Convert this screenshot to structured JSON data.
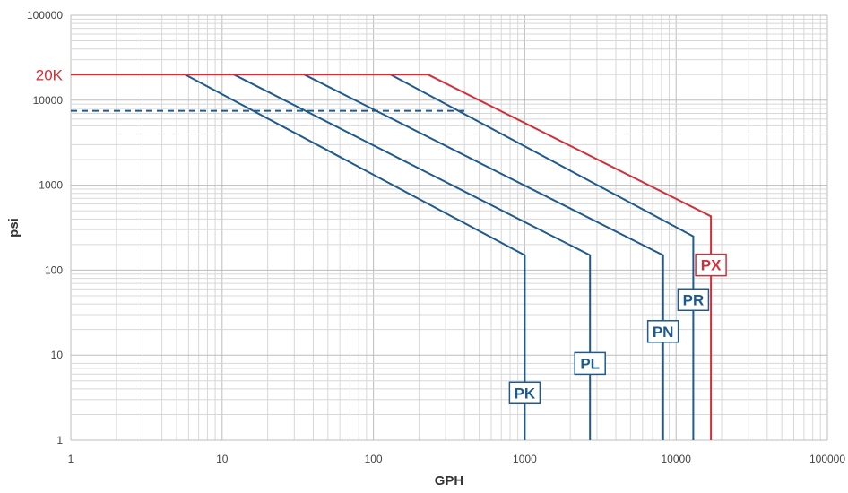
{
  "chart_data": {
    "type": "line",
    "xlabel": "GPH",
    "ylabel": "psi",
    "xscale": "log",
    "yscale": "log",
    "xlim": [
      1,
      100000
    ],
    "ylim": [
      1,
      100000
    ],
    "grid": true,
    "x_ticks": [
      "1",
      "10",
      "100",
      "1000",
      "10000",
      "100000"
    ],
    "y_ticks": [
      "1",
      "10",
      "100",
      "1000",
      "10000",
      "100000"
    ],
    "reference_line": {
      "label": "20K",
      "y": 20000,
      "color": "#d32f3a"
    },
    "dashed_line": {
      "y": 7500,
      "x_range": [
        1,
        400
      ],
      "color": "#1f5a8c"
    },
    "series": [
      {
        "name": "PK",
        "color": "#1f5a8c",
        "points": [
          [
            5.7,
            20000
          ],
          [
            1000,
            150
          ],
          [
            1000,
            1
          ]
        ]
      },
      {
        "name": "PL",
        "color": "#1f5a8c",
        "points": [
          [
            12,
            20000
          ],
          [
            2700,
            150
          ],
          [
            2700,
            1
          ]
        ]
      },
      {
        "name": "PN",
        "color": "#1f5a8c",
        "points": [
          [
            35,
            20000
          ],
          [
            8200,
            150
          ],
          [
            8200,
            1
          ]
        ]
      },
      {
        "name": "PR",
        "color": "#1f5a8c",
        "points": [
          [
            130,
            20000
          ],
          [
            13000,
            250
          ],
          [
            13000,
            1
          ]
        ]
      },
      {
        "name": "PX",
        "color": "#d32f3a",
        "points": [
          [
            230,
            20000
          ],
          [
            17000,
            430
          ],
          [
            17000,
            1
          ]
        ]
      }
    ],
    "series_labels": [
      {
        "name": "PK",
        "x": 1000,
        "y": 3.6
      },
      {
        "name": "PL",
        "x": 2700,
        "y": 8
      },
      {
        "name": "PN",
        "x": 8200,
        "y": 19
      },
      {
        "name": "PR",
        "x": 13000,
        "y": 45
      },
      {
        "name": "PX",
        "x": 17000,
        "y": 115
      }
    ]
  }
}
